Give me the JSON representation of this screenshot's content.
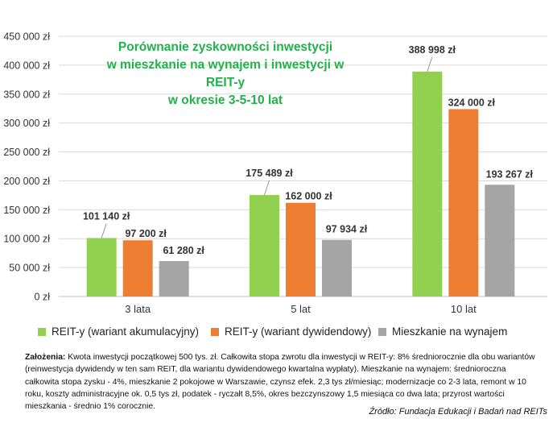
{
  "chart_data": {
    "type": "bar",
    "title_lines": [
      "Porównanie zyskowności inwestycji",
      "w mieszkanie na  wynajem i inwestycji w REIT-y",
      "w okresie 3-5-10 lat"
    ],
    "categories": [
      "3 lata",
      "5 lat",
      "10 lat"
    ],
    "series": [
      {
        "name": "REIT-y (wariant akumulacyjny)",
        "color": "#92d050",
        "values": [
          101140,
          175489,
          388998
        ],
        "labels": [
          "101 140 zł",
          "175 489 zł",
          "388 998 zł"
        ]
      },
      {
        "name": "REIT-y (wariant dywidendowy)",
        "color": "#ed7d31",
        "values": [
          97200,
          162000,
          324000
        ],
        "labels": [
          "97 200 zł",
          "162 000 zł",
          "324 000 zł"
        ]
      },
      {
        "name": "Mieszkanie na wynajem",
        "color": "#a5a5a5",
        "values": [
          61280,
          97934,
          193267
        ],
        "labels": [
          "61 280 zł",
          "97 934 zł",
          "193 267 zł"
        ]
      }
    ],
    "ylim": [
      0,
      450000
    ],
    "yticks": [
      0,
      50000,
      100000,
      150000,
      200000,
      250000,
      300000,
      350000,
      400000,
      450000
    ],
    "ytick_labels": [
      "0 zł",
      "50 000 zł",
      "100 000 zł",
      "150 000 zł",
      "200 000 zł",
      "250 000 zł",
      "300 000 zł",
      "350 000 zł",
      "400 000 zł",
      "450 000 zł"
    ],
    "grid": true,
    "legend_position": "bottom",
    "xlabel": "",
    "ylabel": ""
  },
  "notes": {
    "label": "Założenia:",
    "text": " Kwota inwestycji początkowej 500 tys. zł. Całkowita stopa zwrotu dla inwestycji w REIT-y: 8% średniorocznie dla obu wariantów (reinwestycja dywidendy w ten sam REIT, dla wariantu dywidendowego kwartalna wypłaty). Mieszkanie na wynajem: średnioroczna całkowita stopa zysku - 4%, mieszkanie 2 pokojowe w Warszawie, czynsz efek. 2,3 tys zł/miesiąc;  modernizacje co 2-3  lata, remont w 10 roku, koszty administracyjne ok. 0,5 tys zł, podatek - ryczałt 8,5%, okres bezczynszowy 1,5 miesiąca co dwa lata; przyrost wartości mieszkania - średnio 1% corocznie."
  },
  "source": "Źródło:  Fundacja Edukacji i Badań nad REITs"
}
